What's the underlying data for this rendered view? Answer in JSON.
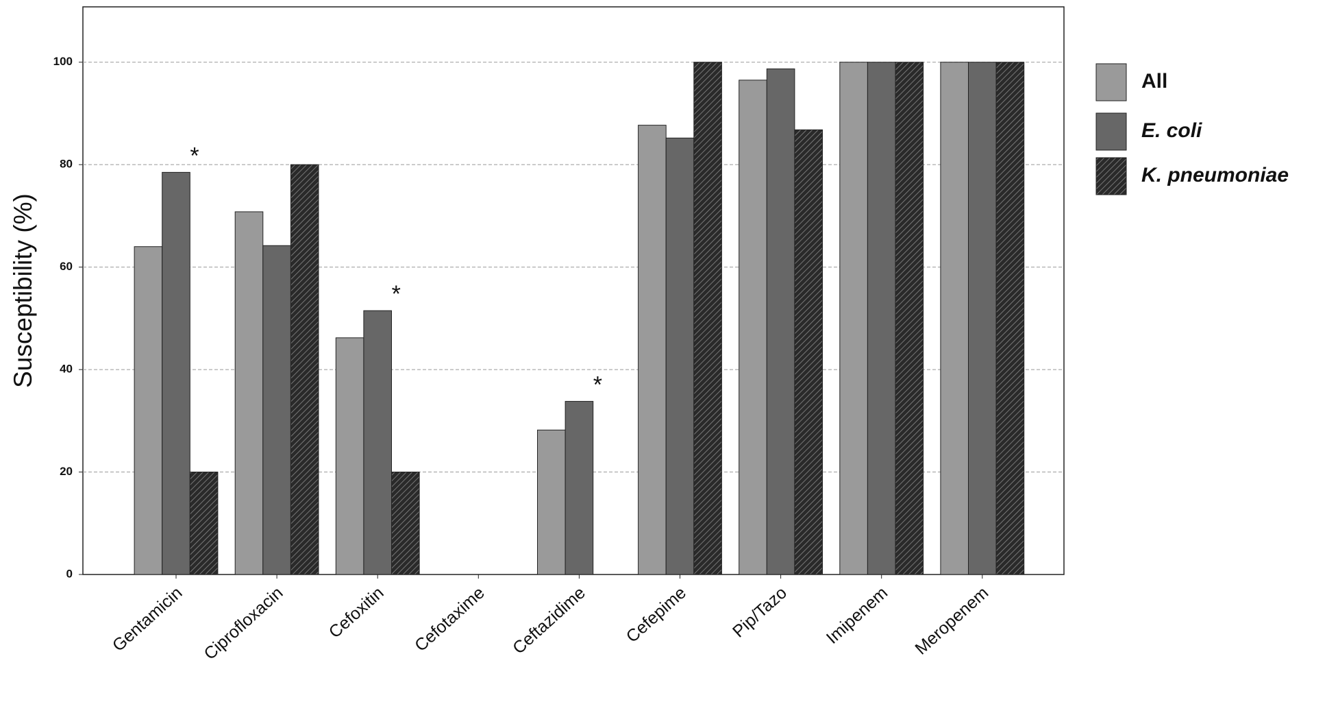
{
  "chart_data": {
    "type": "bar",
    "y_label": "Susceptibility (%)",
    "categories": [
      "Gentamicin",
      "Ciprofloxacin",
      "Cefoxitin",
      "Cefotaxime",
      "Ceftazidime",
      "Cefepime",
      "Pip/Tazo",
      "Imipenem",
      "Meropenem"
    ],
    "series": [
      {
        "name": "All",
        "color": "#9a9a9a",
        "values": [
          64,
          70.8,
          46.2,
          0,
          28.2,
          87.7,
          96.5,
          100,
          100
        ]
      },
      {
        "name": "E. coli",
        "color": "#676767",
        "italic": true,
        "values": [
          78.5,
          64.2,
          51.5,
          0,
          33.8,
          85.2,
          98.7,
          100,
          100
        ]
      },
      {
        "name": "K. pneumoniae",
        "color": "#3a3a3a",
        "italic": true,
        "hatch": true,
        "values": [
          20,
          80,
          20,
          0,
          0,
          100,
          86.8,
          100,
          100
        ]
      }
    ],
    "significance": [
      "*",
      null,
      "*",
      null,
      "*",
      null,
      null,
      null,
      null
    ],
    "ylim": [
      0,
      110.8
    ],
    "yticks": [
      0,
      20,
      40,
      60,
      80,
      100
    ],
    "grid": true,
    "legend": "right"
  }
}
